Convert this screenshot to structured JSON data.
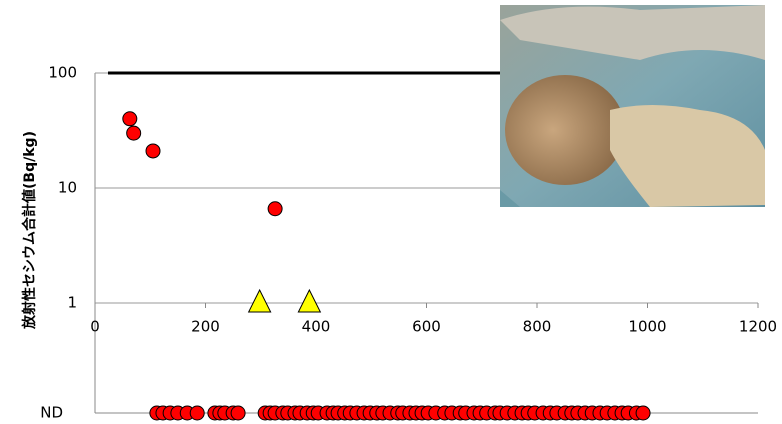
{
  "chart_data": {
    "type": "scatter",
    "y_label": "放射性セシウム合計値(Bq/kg)",
    "xlim": [
      0,
      1200
    ],
    "xticks": [
      0,
      200,
      400,
      600,
      800,
      1000,
      1200
    ],
    "ylim": [
      1,
      100
    ],
    "yticks": [
      1,
      10,
      100
    ],
    "log_y": true,
    "grid": true,
    "nd_label": "ND",
    "limit_line": 100,
    "series": [
      {
        "marker": "circle",
        "color": "#ff0000",
        "x": [
          63,
          70,
          105,
          326
        ],
        "values": [
          40,
          30,
          21,
          6.6
        ]
      },
      {
        "marker": "triangle",
        "color": "#ffff00",
        "x": [
          298,
          388
        ],
        "values": [
          1,
          1
        ]
      },
      {
        "marker": "circle",
        "color": "#ff0000",
        "nd": true,
        "x": [
          112,
          123,
          136,
          150,
          167,
          185,
          217,
          226,
          235,
          250,
          259,
          308,
          317,
          326,
          340,
          349,
          362,
          371,
          384,
          395,
          404,
          420,
          431,
          440,
          452,
          462,
          474,
          487,
          498,
          510,
          521,
          534,
          548,
          557,
          570,
          581,
          592,
          603,
          617,
          633,
          646,
          661,
          671,
          686,
          697,
          709,
          724,
          733,
          746,
          760,
          773,
          784,
          796,
          811,
          824,
          836,
          851,
          863,
          874,
          887,
          900,
          914,
          927,
          941,
          954,
          965,
          980,
          992
        ]
      }
    ]
  }
}
